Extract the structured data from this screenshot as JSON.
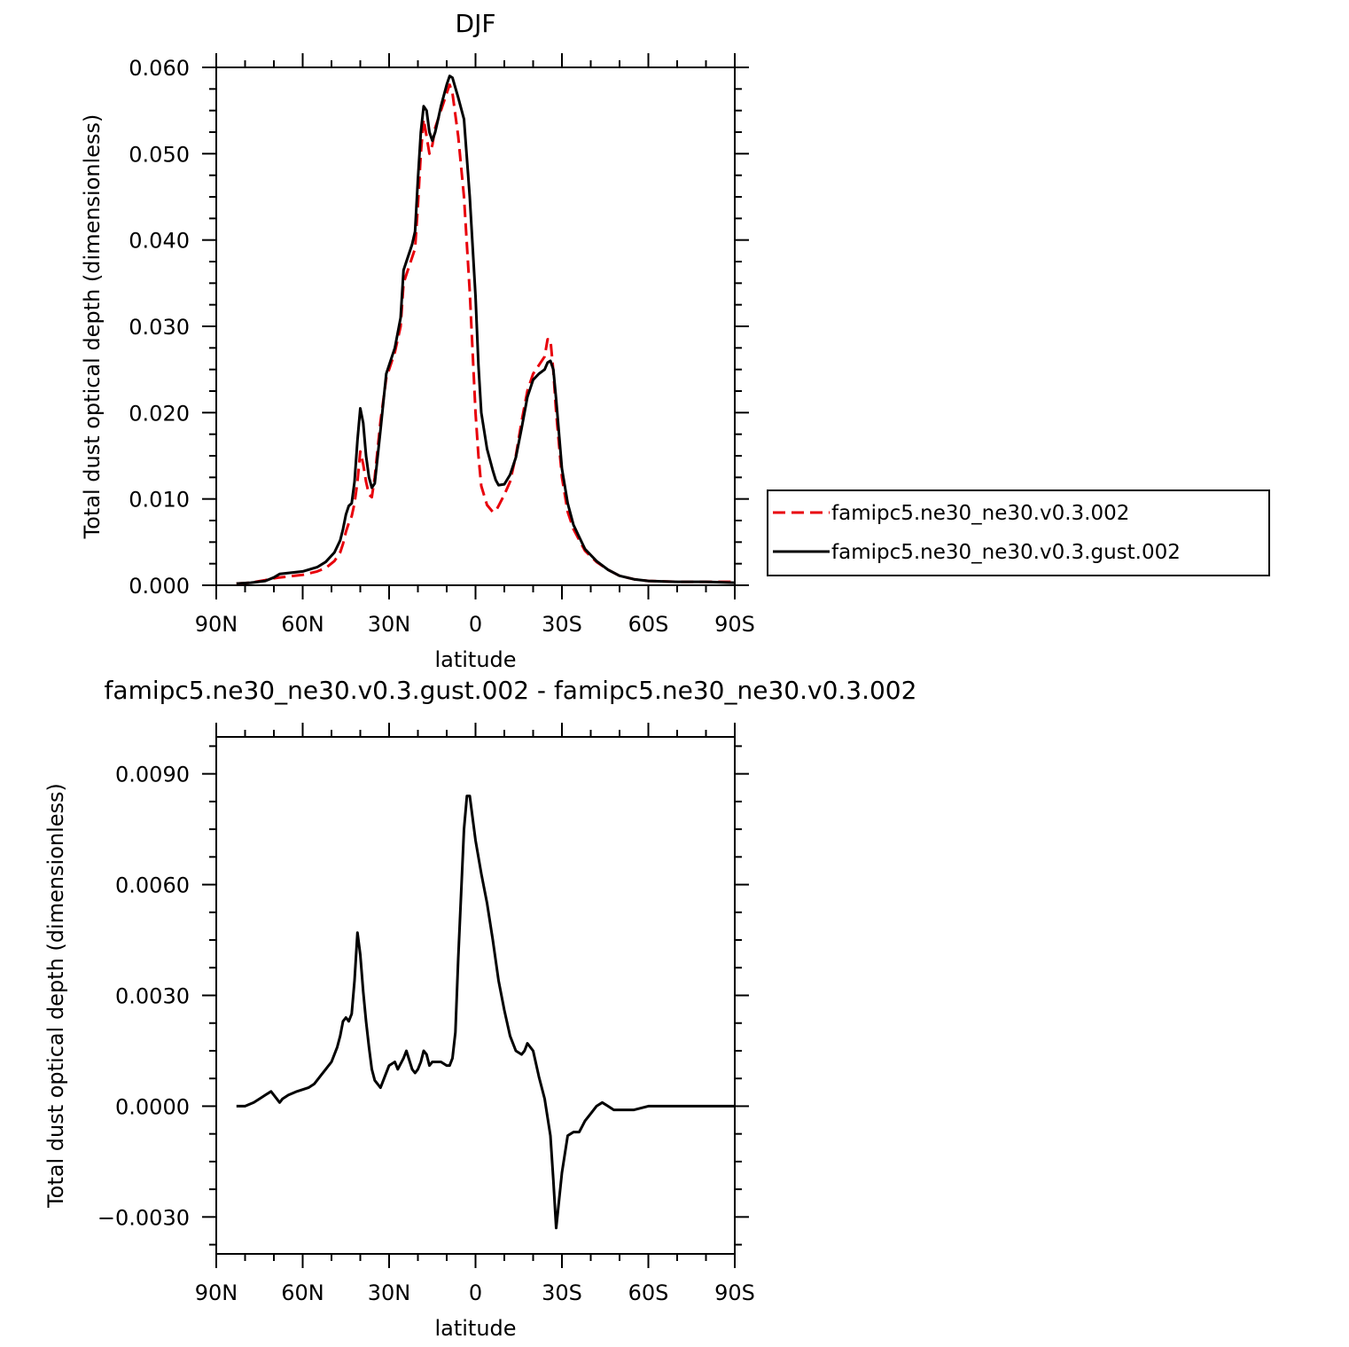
{
  "chart_data": [
    {
      "type": "line",
      "title": "DJF",
      "xlabel": "latitude",
      "ylabel": "Total dust optical depth (dimensionless)",
      "xlim": [
        90,
        -90
      ],
      "ylim": [
        0,
        0.06
      ],
      "xticks": [
        90,
        60,
        30,
        0,
        -30,
        -60,
        -90
      ],
      "xtick_labels": [
        "90N",
        "60N",
        "30N",
        "0",
        "30S",
        "60S",
        "90S"
      ],
      "yticks": [
        0,
        0.01,
        0.02,
        0.03,
        0.04,
        0.05,
        0.06
      ],
      "ytick_labels": [
        "0.000",
        "0.010",
        "0.020",
        "0.030",
        "0.040",
        "0.050",
        "0.060"
      ],
      "grid": false,
      "legend": "right",
      "series": [
        {
          "name": "famipc5.ne30_ne30.v0.3.002",
          "color": "#e8000b",
          "style": "dashed",
          "x": [
            83,
            78,
            73,
            70,
            68,
            60,
            55,
            52,
            49,
            47,
            46,
            45,
            44,
            43,
            42,
            41,
            40,
            39,
            38,
            37,
            36,
            35,
            33,
            31,
            30,
            28,
            26,
            25,
            24,
            22,
            21,
            20,
            19,
            18,
            17,
            16,
            15,
            14,
            13,
            12,
            10,
            9,
            8,
            6,
            4,
            2,
            0,
            -1,
            -2,
            -4,
            -6,
            -7,
            -8,
            -10,
            -12,
            -14,
            -16,
            -18,
            -20,
            -22,
            -24,
            -25,
            -26,
            -27,
            -28,
            -30,
            -32,
            -34,
            -38,
            -42,
            -46,
            -50,
            -55,
            -60,
            -70,
            -80,
            -90
          ],
          "values": [
            0.0002,
            0.0003,
            0.0006,
            0.0008,
            0.0009,
            0.0012,
            0.0016,
            0.002,
            0.0028,
            0.0038,
            0.0048,
            0.0062,
            0.0072,
            0.008,
            0.0095,
            0.012,
            0.0155,
            0.014,
            0.012,
            0.0105,
            0.0102,
            0.0125,
            0.019,
            0.024,
            0.025,
            0.027,
            0.03,
            0.035,
            0.036,
            0.038,
            0.039,
            0.044,
            0.05,
            0.054,
            0.052,
            0.05,
            0.051,
            0.053,
            0.054,
            0.055,
            0.057,
            0.058,
            0.057,
            0.052,
            0.045,
            0.034,
            0.02,
            0.015,
            0.0115,
            0.0093,
            0.0085,
            0.0086,
            0.0092,
            0.0105,
            0.012,
            0.015,
            0.019,
            0.0225,
            0.0245,
            0.0255,
            0.0265,
            0.0285,
            0.0285,
            0.0248,
            0.02,
            0.0125,
            0.0085,
            0.0065,
            0.004,
            0.0027,
            0.0018,
            0.0011,
            0.0007,
            0.0005,
            0.0004,
            0.0004,
            0.0004
          ]
        },
        {
          "name": "famipc5.ne30_ne30.v0.3.gust.002",
          "color": "#000000",
          "style": "solid",
          "x": [
            83,
            78,
            73,
            70,
            68,
            60,
            55,
            52,
            49,
            47,
            46,
            45,
            44,
            43,
            42,
            41,
            40,
            39,
            38,
            37,
            36,
            35,
            33,
            31,
            30,
            28,
            26,
            25,
            24,
            22,
            21,
            20,
            19,
            18,
            17,
            16,
            15,
            14,
            13,
            12,
            10,
            9,
            8,
            6,
            4,
            2,
            0,
            -1,
            -2,
            -4,
            -6,
            -7,
            -8,
            -10,
            -12,
            -14,
            -16,
            -18,
            -20,
            -22,
            -24,
            -25,
            -26,
            -27,
            -28,
            -30,
            -32,
            -34,
            -38,
            -42,
            -46,
            -50,
            -55,
            -60,
            -70,
            -80,
            -90
          ],
          "values": [
            0.0002,
            0.0003,
            0.0005,
            0.0009,
            0.0013,
            0.0016,
            0.0021,
            0.0027,
            0.0038,
            0.0052,
            0.0065,
            0.0082,
            0.0092,
            0.0095,
            0.012,
            0.0168,
            0.0205,
            0.0188,
            0.015,
            0.0125,
            0.0113,
            0.0118,
            0.018,
            0.0245,
            0.0255,
            0.0275,
            0.031,
            0.0365,
            0.0375,
            0.0395,
            0.041,
            0.047,
            0.0525,
            0.0555,
            0.055,
            0.0525,
            0.0515,
            0.0525,
            0.054,
            0.0555,
            0.058,
            0.059,
            0.0588,
            0.0565,
            0.054,
            0.045,
            0.0335,
            0.0255,
            0.02,
            0.0158,
            0.0133,
            0.0122,
            0.0116,
            0.0117,
            0.0128,
            0.0148,
            0.0182,
            0.0218,
            0.0238,
            0.0245,
            0.025,
            0.0258,
            0.026,
            0.025,
            0.0215,
            0.0135,
            0.0095,
            0.007,
            0.0042,
            0.0028,
            0.0018,
            0.0011,
            0.0007,
            0.0005,
            0.0004,
            0.0004,
            0.0003
          ]
        }
      ]
    },
    {
      "type": "line",
      "title": "famipc5.ne30_ne30.v0.3.gust.002 - famipc5.ne30_ne30.v0.3.002",
      "xlabel": "latitude",
      "ylabel": "Total dust optical depth (dimensionless)",
      "xlim": [
        90,
        -90
      ],
      "ylim": [
        -0.004,
        0.01
      ],
      "xticks": [
        90,
        60,
        30,
        0,
        -30,
        -60,
        -90
      ],
      "xtick_labels": [
        "90N",
        "60N",
        "30N",
        "0",
        "30S",
        "60S",
        "90S"
      ],
      "yticks": [
        -0.003,
        0,
        0.003,
        0.006,
        0.009
      ],
      "ytick_labels": [
        "−0.0030",
        "0.0000",
        "0.0030",
        "0.0060",
        "0.0090"
      ],
      "grid": false,
      "series": [
        {
          "color": "#000000",
          "style": "solid",
          "x": [
            83,
            80,
            77,
            75,
            73,
            71,
            70,
            68,
            67,
            65,
            62,
            58,
            56,
            54,
            52,
            50,
            48,
            47,
            46,
            45,
            44,
            43,
            42,
            41,
            40,
            39,
            38,
            37,
            36,
            35,
            33,
            32,
            30,
            28,
            27,
            25,
            24,
            22,
            21,
            20,
            19,
            18,
            17,
            16,
            15,
            14,
            13,
            12,
            10,
            9,
            8,
            7,
            6,
            4,
            3,
            2,
            0,
            -2,
            -4,
            -6,
            -8,
            -10,
            -12,
            -14,
            -16,
            -17,
            -18,
            -20,
            -22,
            -24,
            -26,
            -27,
            -28,
            -30,
            -32,
            -34,
            -36,
            -38,
            -40,
            -42,
            -44,
            -46,
            -48,
            -50,
            -55,
            -60,
            -70,
            -80,
            -90
          ],
          "values": [
            0.0,
            0.0,
            0.0001,
            0.0002,
            0.0003,
            0.0004,
            0.0003,
            0.0001,
            0.0002,
            0.0003,
            0.0004,
            0.0005,
            0.0006,
            0.0008,
            0.001,
            0.0012,
            0.0016,
            0.0019,
            0.0023,
            0.0024,
            0.0023,
            0.0025,
            0.0034,
            0.0047,
            0.0041,
            0.0031,
            0.0023,
            0.0016,
            0.001,
            0.0007,
            0.0005,
            0.0007,
            0.0011,
            0.0012,
            0.001,
            0.0013,
            0.0015,
            0.001,
            0.0009,
            0.001,
            0.0012,
            0.0015,
            0.0014,
            0.0011,
            0.0012,
            0.0012,
            0.0012,
            0.0012,
            0.0011,
            0.0011,
            0.0013,
            0.002,
            0.004,
            0.0075,
            0.0084,
            0.0084,
            0.0072,
            0.0063,
            0.0055,
            0.0045,
            0.0034,
            0.0026,
            0.0019,
            0.0015,
            0.0014,
            0.0015,
            0.0017,
            0.0015,
            0.0008,
            0.0002,
            -0.0008,
            -0.002,
            -0.0033,
            -0.0018,
            -0.0008,
            -0.0007,
            -0.0007,
            -0.0004,
            -0.0002,
            0.0,
            0.0001,
            0.0,
            -0.0001,
            -0.0001,
            -0.0001,
            0.0,
            0.0,
            0.0,
            0.0
          ]
        }
      ]
    }
  ]
}
